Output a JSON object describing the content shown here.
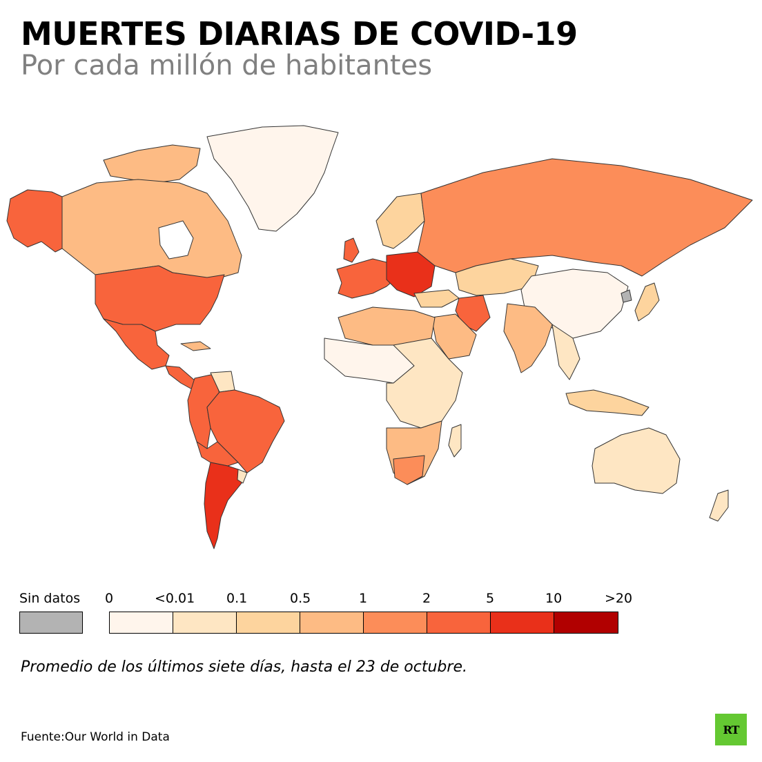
{
  "title": "MUERTES DIARIAS DE COVID-19",
  "subtitle": "Por cada millón de habitantes",
  "legend": {
    "no_data_label": "Sin datos",
    "no_data_color": "#b3b3b3",
    "ticks": [
      "0",
      "<0.01",
      "0.1",
      "0.5",
      "1",
      "2",
      "5",
      "10",
      ">20"
    ],
    "colors": [
      "#fff5ec",
      "#fee6c3",
      "#fdd49e",
      "#fdbb84",
      "#fc8d59",
      "#f8643c",
      "#e9301a",
      "#b10000"
    ]
  },
  "note": "Promedio de los últimos siete días, hasta el 23 de octubre.",
  "source": "Fuente:Our World in Data",
  "logo_text": "RT"
}
